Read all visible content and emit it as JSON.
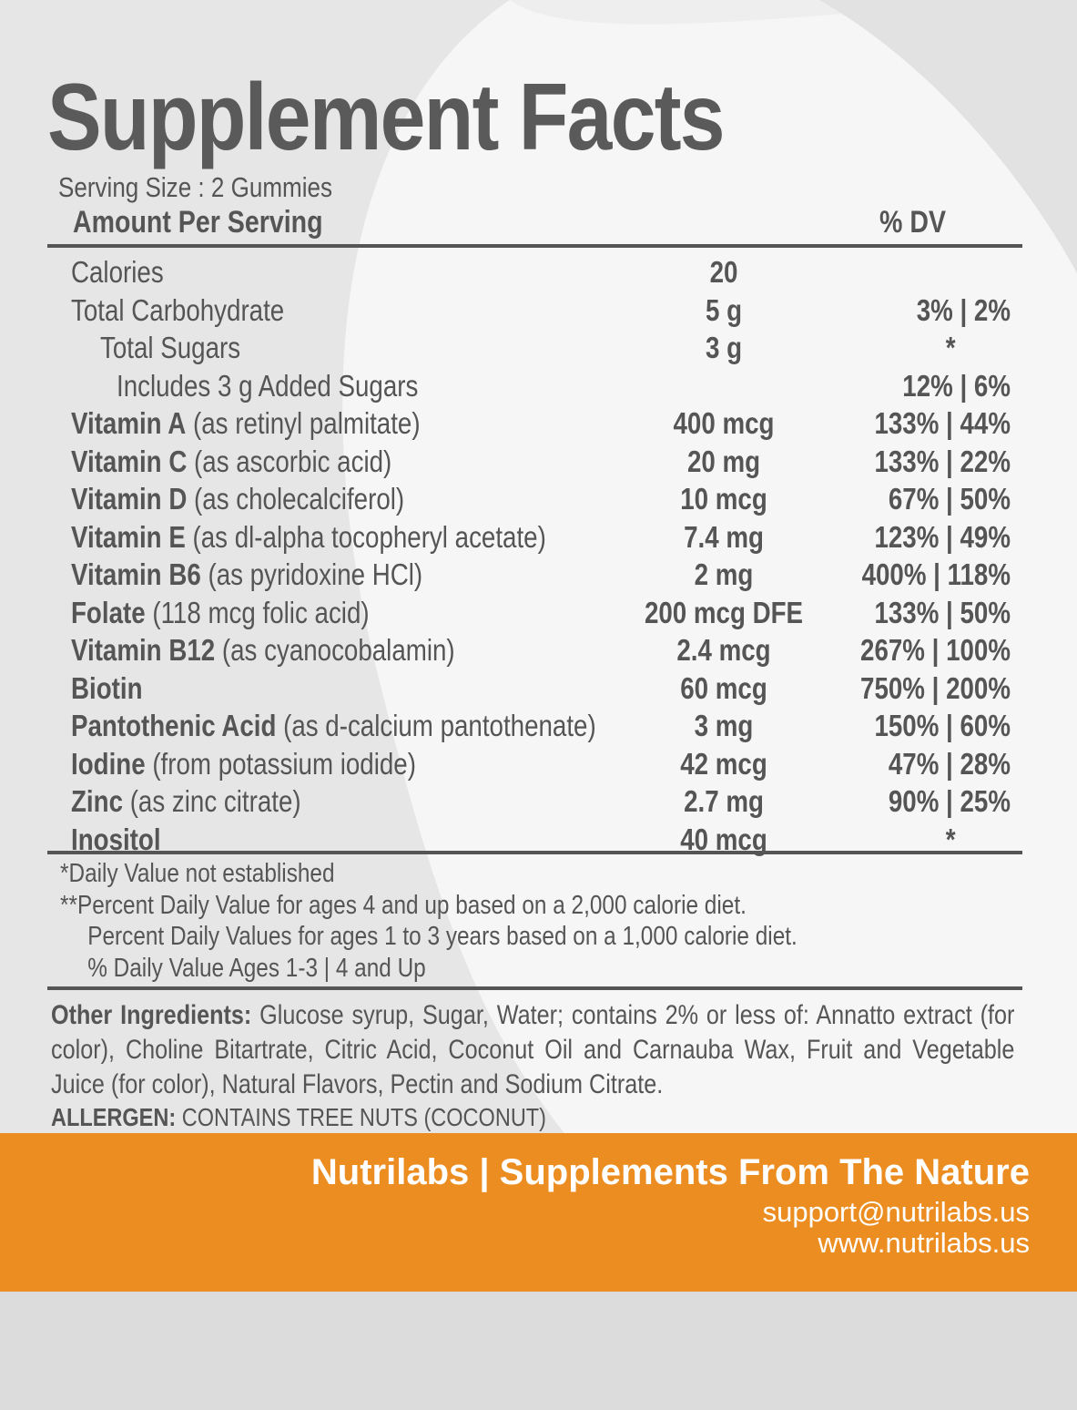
{
  "title": "Supplement Facts",
  "serving_size": "Serving Size :  2 Gummies",
  "header": {
    "amount": "Amount Per Serving",
    "dv": "% DV"
  },
  "rows": [
    {
      "bold": "",
      "name": "Calories",
      "amount": "20",
      "dv": "",
      "indent": 0
    },
    {
      "bold": "",
      "name": "Total Carbohydrate",
      "amount": "5 g",
      "dv": "3% | 2%",
      "indent": 0
    },
    {
      "bold": "",
      "name": "Total Sugars",
      "amount": "3 g",
      "dv": "*",
      "indent": 1
    },
    {
      "bold": "",
      "name": "Includes 3 g Added Sugars",
      "amount": "",
      "dv": "12% | 6%",
      "indent": 2
    },
    {
      "bold": "Vitamin A",
      "name": " (as retinyl palmitate)",
      "amount": "400 mcg",
      "dv": "133% | 44%",
      "indent": 0
    },
    {
      "bold": "Vitamin C",
      "name": " (as ascorbic acid)",
      "amount": "20 mg",
      "dv": "133% | 22%",
      "indent": 0
    },
    {
      "bold": "Vitamin D",
      "name": " (as cholecalciferol)",
      "amount": "10 mcg",
      "dv": "67% | 50%",
      "indent": 0
    },
    {
      "bold": "Vitamin E",
      "name": " (as dl-alpha tocopheryl acetate)",
      "amount": "7.4 mg",
      "dv": "123% | 49%",
      "indent": 0
    },
    {
      "bold": "Vitamin B6",
      "name": " (as pyridoxine HCl)",
      "amount": "2 mg",
      "dv": "400% | 118%",
      "indent": 0
    },
    {
      "bold": "Folate",
      "name": " (118 mcg folic acid)",
      "amount": "200 mcg DFE",
      "dv": "133% | 50%",
      "indent": 0
    },
    {
      "bold": "Vitamin B12",
      "name": " (as cyanocobalamin)",
      "amount": "2.4 mcg",
      "dv": "267% | 100%",
      "indent": 0
    },
    {
      "bold": "Biotin",
      "name": "",
      "amount": "60 mcg",
      "dv": "750% | 200%",
      "indent": 0
    },
    {
      "bold": "Pantothenic Acid",
      "name": " (as d-calcium pantothenate)",
      "amount": "3 mg",
      "dv": "150% | 60%",
      "indent": 0
    },
    {
      "bold": "Iodine",
      "name": " (from potassium iodide)",
      "amount": "42 mcg",
      "dv": "47% | 28%",
      "indent": 0
    },
    {
      "bold": "Zinc",
      "name": " (as zinc citrate)",
      "amount": "2.7 mg",
      "dv": "90% | 25%",
      "indent": 0
    },
    {
      "bold": "Inositol",
      "name": "",
      "amount": "40 mcg",
      "dv": "*",
      "indent": 0
    }
  ],
  "notes": [
    "*Daily Value not established",
    "**Percent Daily Value for ages 4 and up based on a 2,000 calorie diet.",
    "Percent Daily Values for ages 1 to 3 years based on a 1,000 calorie diet.",
    "% Daily Value Ages 1-3 | 4 and Up"
  ],
  "ingredients": {
    "label": "Other Ingredients:",
    "text": " Glucose syrup, Sugar, Water; contains 2% or less of: Annatto extract (for color), Choline Bitartrate, Citric Acid, Coconut Oil and Carnauba Wax, Fruit and Vegetable Juice (for color), Natural Flavors, Pectin and Sodium Citrate."
  },
  "allergen": {
    "label": "ALLERGEN:",
    "text": " CONTAINS TREE NUTS (COCONUT)"
  },
  "banner": {
    "title": "Nutrilabs | Supplements From The Nature",
    "email": "support@nutrilabs.us",
    "website": "www.nutrilabs.us"
  },
  "colors": {
    "accent": "#ec8d22",
    "text": "#555555",
    "background": "#f1f1f1"
  }
}
